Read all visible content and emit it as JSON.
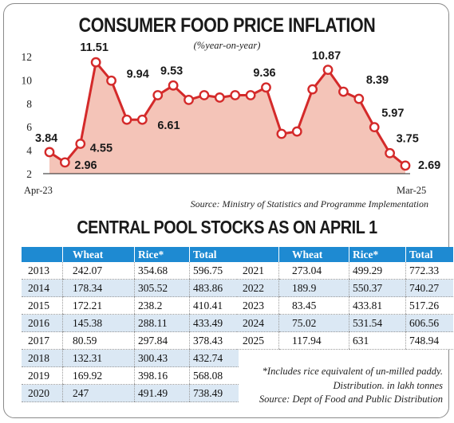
{
  "chart_data": {
    "type": "area",
    "title": "CONSUMER FOOD PRICE INFLATION",
    "subtitle": "(%year-on-year)",
    "source": "Source: Ministry of Statistics and Programme Implementation",
    "x_start_label": "Apr-23",
    "x_end_label": "Mar-25",
    "y_ticks": [
      2,
      4,
      6,
      8,
      10,
      12
    ],
    "ylim": [
      2,
      12
    ],
    "grid": false,
    "line_color": "#d42a2a",
    "fill_color": "#f4c4b8",
    "values": [
      3.84,
      2.96,
      4.55,
      11.51,
      9.94,
      6.61,
      6.61,
      8.7,
      9.53,
      8.3,
      8.7,
      8.5,
      8.7,
      8.7,
      9.36,
      5.4,
      5.6,
      9.2,
      10.87,
      9.0,
      8.39,
      5.97,
      3.75,
      2.69
    ],
    "labeled_points": [
      {
        "index": 0,
        "text": "3.84"
      },
      {
        "index": 1,
        "text": "2.96"
      },
      {
        "index": 2,
        "text": "4.55"
      },
      {
        "index": 3,
        "text": "11.51"
      },
      {
        "index": 4,
        "text": "9.94"
      },
      {
        "index": 6,
        "text": "6.61"
      },
      {
        "index": 8,
        "text": "9.53"
      },
      {
        "index": 14,
        "text": "9.36"
      },
      {
        "index": 18,
        "text": "10.87"
      },
      {
        "index": 20,
        "text": "8.39"
      },
      {
        "index": 21,
        "text": "5.97"
      },
      {
        "index": 22,
        "text": "3.75"
      },
      {
        "index": 23,
        "text": "2.69"
      }
    ]
  },
  "stocks": {
    "title": "CENTRAL POOL STOCKS AS ON APRIL 1",
    "columns": [
      "",
      "Wheat",
      "Rice*",
      "Total"
    ],
    "left_rows": [
      [
        "2013",
        "242.07",
        "354.68",
        "596.75"
      ],
      [
        "2014",
        "178.34",
        "305.52",
        "483.86"
      ],
      [
        "2015",
        "172.21",
        "238.2",
        "410.41"
      ],
      [
        "2016",
        "145.38",
        "288.11",
        "433.49"
      ],
      [
        "2017",
        "80.59",
        "297.84",
        "378.43"
      ],
      [
        "2018",
        "132.31",
        "300.43",
        "432.74"
      ],
      [
        "2019",
        "169.92",
        "398.16",
        "568.08"
      ],
      [
        "2020",
        "247",
        "491.49",
        "738.49"
      ]
    ],
    "right_rows": [
      [
        "2021",
        "273.04",
        "499.29",
        "772.33"
      ],
      [
        "2022",
        "189.9",
        "550.37",
        "740.27"
      ],
      [
        "2023",
        "83.45",
        "433.81",
        "517.26"
      ],
      [
        "2024",
        "75.02",
        "531.54",
        "606.56"
      ],
      [
        "2025",
        "117.94",
        "631",
        "748.94"
      ]
    ],
    "note_rice": "*Includes rice equivalent of un-milled paddy.",
    "note_units": "Distribution. in lakh tonnes",
    "note_source": "Source: Dept of Food and Public Distribution"
  }
}
